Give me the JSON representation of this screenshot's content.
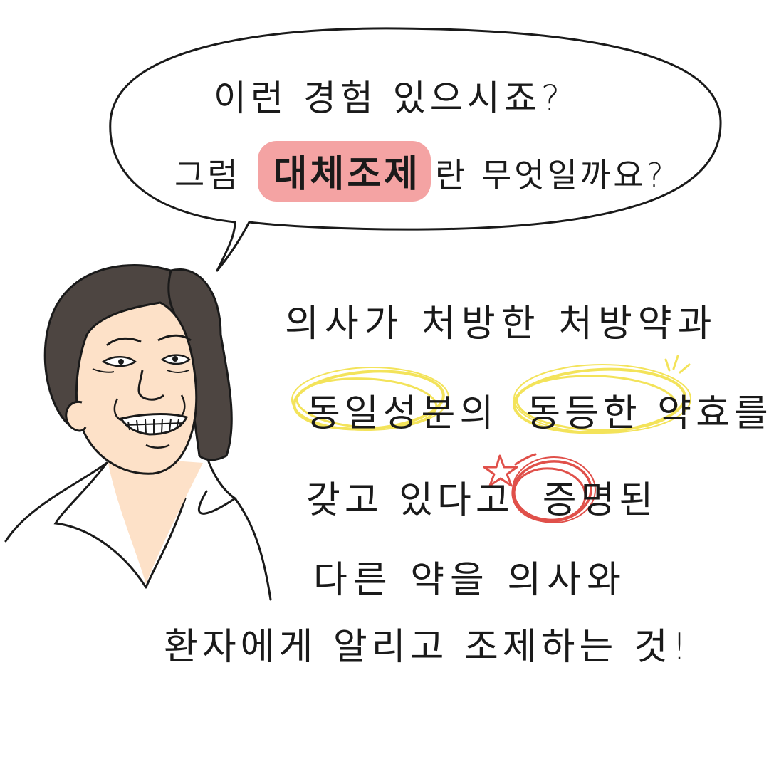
{
  "bubble": {
    "line1": "이런 경험 있으시죠?",
    "line2_prefix": "그럼",
    "line2_highlight": "대체조제",
    "line2_suffix": "란 무엇일까요?"
  },
  "body": {
    "line3": "의사가 처방한 처방약과",
    "line4_a": "동일성분의",
    "line4_b": "동등한 약효를",
    "line5_a": "갖고 있다고",
    "line5_b": "증명된",
    "line6": "다른 약을  의사와",
    "line7": "환자에게 알리고 조제하는 것!"
  },
  "colors": {
    "highlight_pink": "#f4a3a3",
    "yellow_circle": "#f3e35a",
    "red_circle": "#e0504a",
    "hair": "#4d4541",
    "skin": "#fde1c8"
  },
  "icons": {
    "star": "red-star-doodle",
    "sparkle": "yellow-sparkle-lines"
  }
}
